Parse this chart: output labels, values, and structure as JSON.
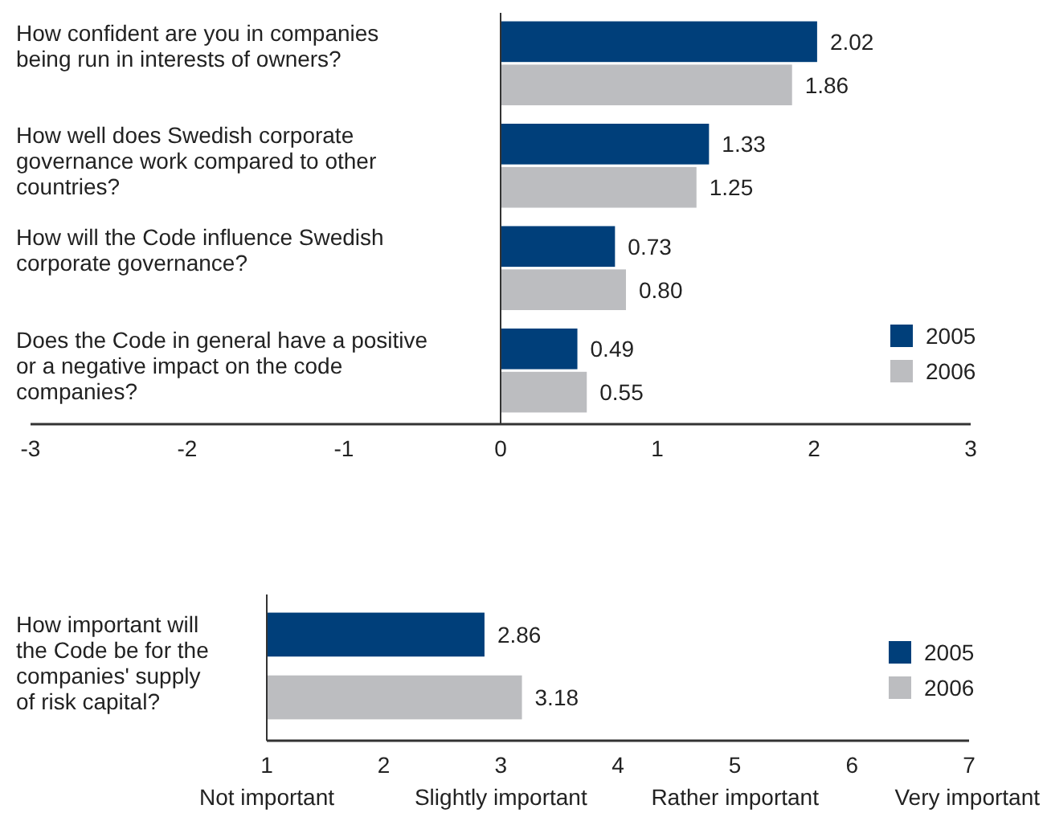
{
  "chart_data": [
    {
      "type": "bar",
      "orientation": "horizontal",
      "categories": [
        "How confident are you in companies being run in interests of owners?",
        "How well does Swedish corporate governance work compared to other countries?",
        "How will the Code influence Swedish corporate governance?",
        "Does the Code in general have a positive or a negative impact on the code companies?"
      ],
      "series": [
        {
          "name": "2005",
          "color": "#003f7a",
          "values": [
            2.02,
            1.33,
            0.73,
            0.49
          ],
          "value_labels": [
            "2.02",
            "1.33",
            "0.73",
            "0.49"
          ]
        },
        {
          "name": "2006",
          "color": "#bcbdc0",
          "values": [
            1.86,
            1.25,
            0.8,
            0.55
          ],
          "value_labels": [
            "1.86",
            "1.25",
            "0.80",
            "0.55"
          ]
        }
      ],
      "xlim": [
        -3,
        3
      ],
      "xticks": [
        -3,
        -2,
        -1,
        0,
        1,
        2,
        3
      ],
      "legend": "bottom right",
      "ref_lines": [
        {
          "axis": "x",
          "value": 0
        }
      ]
    },
    {
      "type": "bar",
      "orientation": "horizontal",
      "categories": [
        "How important will the Code be for the companies' supply of risk capital?"
      ],
      "series": [
        {
          "name": "2005",
          "color": "#003f7a",
          "values": [
            2.86
          ],
          "value_labels": [
            "2.86"
          ]
        },
        {
          "name": "2006",
          "color": "#bcbdc0",
          "values": [
            3.18
          ],
          "value_labels": [
            "3.18"
          ]
        }
      ],
      "xlim": [
        1,
        7
      ],
      "xticks": [
        1,
        2,
        3,
        4,
        5,
        6,
        7
      ],
      "legend": "bottom right",
      "annotations": [
        "Not important",
        "Slightly important",
        "Rather important",
        "Very important"
      ]
    }
  ]
}
